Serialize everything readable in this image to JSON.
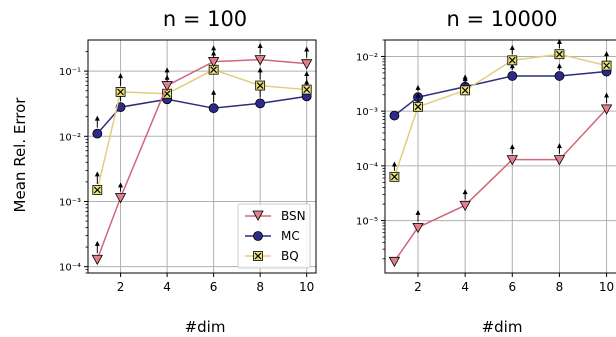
{
  "chart_data": [
    {
      "type": "line",
      "title": "n = 100",
      "xlabel": "#dim",
      "ylabel": "Mean Rel. Error",
      "yscale": "log",
      "xlim": [
        0.6,
        10.4
      ],
      "ylim": [
        8e-05,
        0.3
      ],
      "x_ticks": [
        2,
        4,
        6,
        8,
        10
      ],
      "x_tick_labels": [
        "2",
        "4",
        "6",
        "8",
        "10"
      ],
      "y_ticks": [
        0.0001,
        0.001,
        0.01,
        0.1
      ],
      "y_tick_labels": [
        "10⁻⁴",
        "10⁻³",
        "10⁻²",
        "10⁻¹"
      ],
      "grid": true,
      "legend_position": "lower-right",
      "x": [
        1,
        2,
        4,
        6,
        8,
        10
      ],
      "series": [
        {
          "name": "BSN",
          "values": [
            0.00013,
            0.00115,
            0.06,
            0.14,
            0.15,
            0.13
          ],
          "upper": [
            0.00024,
            0.0019,
            0.11,
            0.24,
            0.26,
            0.23
          ]
        },
        {
          "name": "MC",
          "values": [
            0.011,
            0.028,
            0.037,
            0.027,
            0.032,
            0.041
          ]
        },
        {
          "name": "BQ",
          "values": [
            0.0015,
            0.048,
            0.045,
            0.105,
            0.06,
            0.052
          ],
          "upper": [
            0.0028,
            0.09,
            0.085,
            0.2,
            0.11,
            0.097
          ]
        }
      ],
      "mc_upper": [
        0.02,
        0.05,
        0.066,
        0.05,
        0.058,
        0.072
      ]
    },
    {
      "type": "line",
      "title": "n = 10000",
      "xlabel": "#dim",
      "ylabel": "",
      "yscale": "log",
      "xlim": [
        0.6,
        10.4
      ],
      "ylim": [
        1.1e-06,
        0.02
      ],
      "x_ticks": [
        2,
        4,
        6,
        8,
        10
      ],
      "x_tick_labels": [
        "2",
        "4",
        "6",
        "8",
        "10"
      ],
      "y_ticks": [
        1e-05,
        0.0001,
        0.001,
        0.01
      ],
      "y_tick_labels": [
        "10⁻⁵",
        "10⁻⁴",
        "10⁻³",
        "10⁻²"
      ],
      "grid": true,
      "x": [
        1,
        2,
        4,
        6,
        8,
        10
      ],
      "series": [
        {
          "name": "BSN",
          "values": [
            1.8e-06,
            7.5e-06,
            1.9e-05,
            0.00013,
            0.00013,
            0.0011
          ],
          "upper": [
            2.4e-06,
            1.5e-05,
            3.6e-05,
            0.00024,
            0.00025,
            0.0021
          ]
        },
        {
          "name": "MC",
          "values": [
            0.00083,
            0.0018,
            0.0028,
            0.0044,
            0.0044,
            0.0053
          ],
          "upper": [
            0.0012,
            0.0029,
            0.0045,
            0.0072,
            0.0072,
            0.0085
          ]
        },
        {
          "name": "BQ",
          "values": [
            6.3e-05,
            0.0012,
            0.0024,
            0.0085,
            0.011,
            0.0068
          ],
          "upper": [
            0.000115,
            0.0021,
            0.0042,
            0.0155,
            0.02,
            0.012
          ]
        }
      ]
    }
  ],
  "colors": {
    "BSN_line": "#d0677a",
    "BSN_marker": "#e27f8c",
    "MC_line": "#2b2c7c",
    "MC_marker": "#2e2a8c",
    "BQ_line": "#e3cd7d",
    "BQ_marker": "#ece27a",
    "grid": "#b0b0b0"
  },
  "legend": {
    "items": [
      {
        "label": "BSN",
        "marker": "triangle-down"
      },
      {
        "label": "MC",
        "marker": "circle"
      },
      {
        "label": "BQ",
        "marker": "x-square"
      }
    ]
  }
}
